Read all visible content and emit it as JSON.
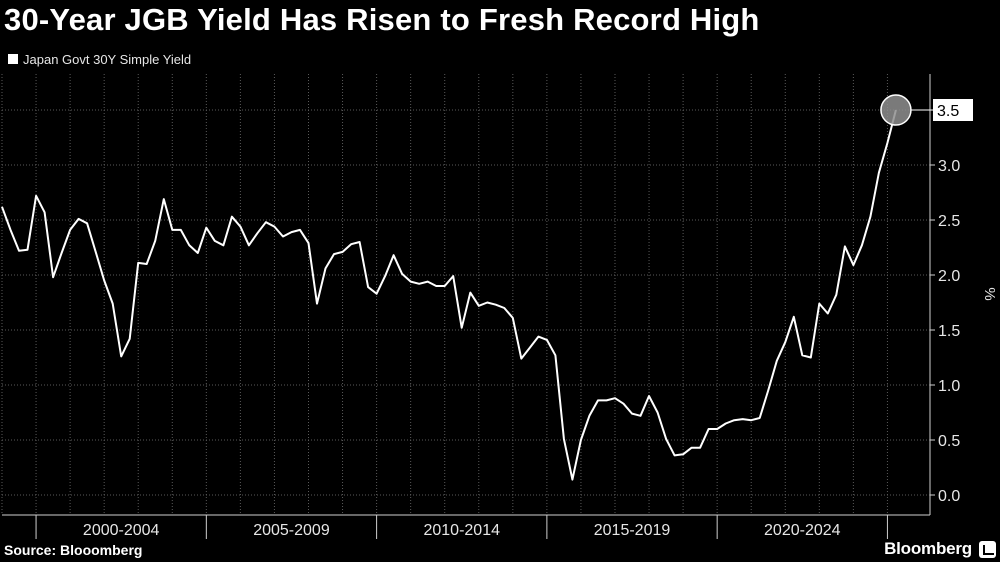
{
  "title": "30-Year JGB Yield Has Risen to Fresh Record High",
  "source": "Source: Blooomberg",
  "brand": "Bloomberg",
  "colors": {
    "background": "#000000",
    "line": "#ffffff",
    "grid": "#5a5a5a",
    "text": "#ffffff"
  },
  "chart_data": {
    "type": "line",
    "title": "30-Year JGB Yield Has Risen to Fresh Record High",
    "xlabel": "",
    "ylabel": "%",
    "ylim": [
      0,
      3.8
    ],
    "yticks": [
      "0.0",
      "0.5",
      "1.0",
      "1.5",
      "2.0",
      "2.5",
      "3.0",
      "3.5"
    ],
    "x_range": [
      1999.0,
      2026.25
    ],
    "x_periods": [
      {
        "label": "2000-2004",
        "start": 2000,
        "end": 2005
      },
      {
        "label": "2005-2009",
        "start": 2005,
        "end": 2010
      },
      {
        "label": "2010-2014",
        "start": 2010,
        "end": 2015
      },
      {
        "label": "2015-2019",
        "start": 2015,
        "end": 2020
      },
      {
        "label": "2020-2024",
        "start": 2020,
        "end": 2025
      }
    ],
    "grid": true,
    "legend": "top-left",
    "last_value_label": "3.5",
    "series": [
      {
        "name": "Japan Govt 30Y Simple Yield",
        "points": [
          [
            1999.0,
            2.62
          ],
          [
            1999.25,
            2.41
          ],
          [
            1999.5,
            2.22
          ],
          [
            1999.75,
            2.23
          ],
          [
            2000.0,
            2.72
          ],
          [
            2000.25,
            2.57
          ],
          [
            2000.5,
            1.98
          ],
          [
            2000.75,
            2.2
          ],
          [
            2001.0,
            2.41
          ],
          [
            2001.25,
            2.51
          ],
          [
            2001.5,
            2.47
          ],
          [
            2001.75,
            2.21
          ],
          [
            2002.0,
            1.95
          ],
          [
            2002.25,
            1.74
          ],
          [
            2002.5,
            1.26
          ],
          [
            2002.75,
            1.42
          ],
          [
            2003.0,
            2.11
          ],
          [
            2003.25,
            2.1
          ],
          [
            2003.5,
            2.31
          ],
          [
            2003.75,
            2.69
          ],
          [
            2004.0,
            2.41
          ],
          [
            2004.25,
            2.41
          ],
          [
            2004.5,
            2.27
          ],
          [
            2004.75,
            2.2
          ],
          [
            2005.0,
            2.43
          ],
          [
            2005.25,
            2.31
          ],
          [
            2005.5,
            2.27
          ],
          [
            2005.75,
            2.53
          ],
          [
            2006.0,
            2.44
          ],
          [
            2006.25,
            2.27
          ],
          [
            2006.5,
            2.38
          ],
          [
            2006.75,
            2.48
          ],
          [
            2007.0,
            2.44
          ],
          [
            2007.25,
            2.35
          ],
          [
            2007.5,
            2.39
          ],
          [
            2007.75,
            2.41
          ],
          [
            2008.0,
            2.29
          ],
          [
            2008.25,
            1.74
          ],
          [
            2008.5,
            2.06
          ],
          [
            2008.75,
            2.19
          ],
          [
            2009.0,
            2.21
          ],
          [
            2009.25,
            2.28
          ],
          [
            2009.5,
            2.3
          ],
          [
            2009.75,
            1.89
          ],
          [
            2010.0,
            1.83
          ],
          [
            2010.25,
            1.99
          ],
          [
            2010.5,
            2.18
          ],
          [
            2010.75,
            2.01
          ],
          [
            2011.0,
            1.94
          ],
          [
            2011.25,
            1.92
          ],
          [
            2011.5,
            1.94
          ],
          [
            2011.75,
            1.9
          ],
          [
            2012.0,
            1.9
          ],
          [
            2012.25,
            1.99
          ],
          [
            2012.5,
            1.52
          ],
          [
            2012.75,
            1.84
          ],
          [
            2013.0,
            1.72
          ],
          [
            2013.25,
            1.75
          ],
          [
            2013.5,
            1.73
          ],
          [
            2013.75,
            1.7
          ],
          [
            2014.0,
            1.61
          ],
          [
            2014.25,
            1.24
          ],
          [
            2014.5,
            1.34
          ],
          [
            2014.75,
            1.44
          ],
          [
            2015.0,
            1.41
          ],
          [
            2015.25,
            1.27
          ],
          [
            2015.5,
            0.51
          ],
          [
            2015.75,
            0.14
          ],
          [
            2016.0,
            0.5
          ],
          [
            2016.25,
            0.72
          ],
          [
            2016.5,
            0.86
          ],
          [
            2016.75,
            0.86
          ],
          [
            2017.0,
            0.88
          ],
          [
            2017.25,
            0.83
          ],
          [
            2017.5,
            0.74
          ],
          [
            2017.75,
            0.72
          ],
          [
            2018.0,
            0.9
          ],
          [
            2018.25,
            0.75
          ],
          [
            2018.5,
            0.51
          ],
          [
            2018.75,
            0.36
          ],
          [
            2019.0,
            0.37
          ],
          [
            2019.25,
            0.43
          ],
          [
            2019.5,
            0.43
          ],
          [
            2019.75,
            0.6
          ],
          [
            2020.0,
            0.6
          ],
          [
            2020.25,
            0.65
          ],
          [
            2020.5,
            0.68
          ],
          [
            2020.75,
            0.69
          ],
          [
            2021.0,
            0.68
          ],
          [
            2021.25,
            0.7
          ],
          [
            2021.5,
            0.95
          ],
          [
            2021.75,
            1.22
          ],
          [
            2022.0,
            1.39
          ],
          [
            2022.25,
            1.62
          ],
          [
            2022.5,
            1.27
          ],
          [
            2022.75,
            1.25
          ],
          [
            2023.0,
            1.74
          ],
          [
            2023.25,
            1.65
          ],
          [
            2023.5,
            1.82
          ],
          [
            2023.75,
            2.26
          ],
          [
            2024.0,
            2.09
          ],
          [
            2024.25,
            2.27
          ],
          [
            2024.5,
            2.53
          ],
          [
            2024.75,
            2.93
          ],
          [
            2025.0,
            3.2
          ],
          [
            2025.25,
            3.5
          ]
        ]
      }
    ]
  }
}
